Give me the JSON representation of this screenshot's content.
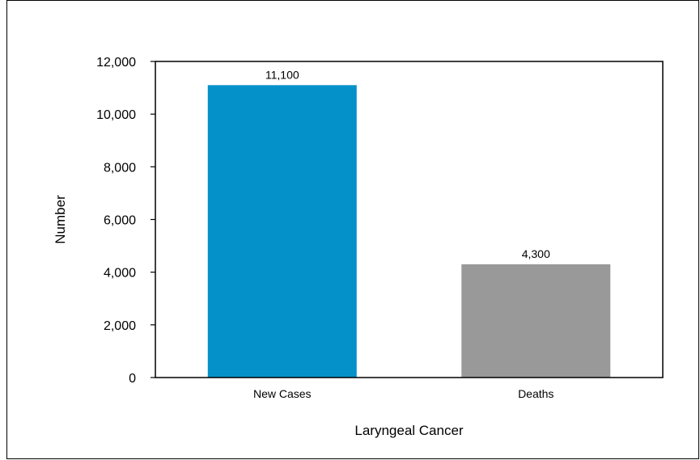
{
  "chart_data": {
    "type": "bar",
    "categories": [
      "New Cases",
      "Deaths"
    ],
    "values": [
      11100,
      4300
    ],
    "data_labels": [
      "11,100",
      "4,300"
    ],
    "colors": [
      "#0491c9",
      "#999999"
    ],
    "title": "",
    "xlabel": "Laryngeal Cancer",
    "ylabel": "Number",
    "ylim": [
      0,
      12000
    ],
    "yticks": [
      0,
      2000,
      4000,
      6000,
      8000,
      10000,
      12000
    ],
    "ytick_labels": [
      "0",
      "2,000",
      "4,000",
      "6,000",
      "8,000",
      "10,000",
      "12,000"
    ],
    "grid": false,
    "legend": "none"
  }
}
